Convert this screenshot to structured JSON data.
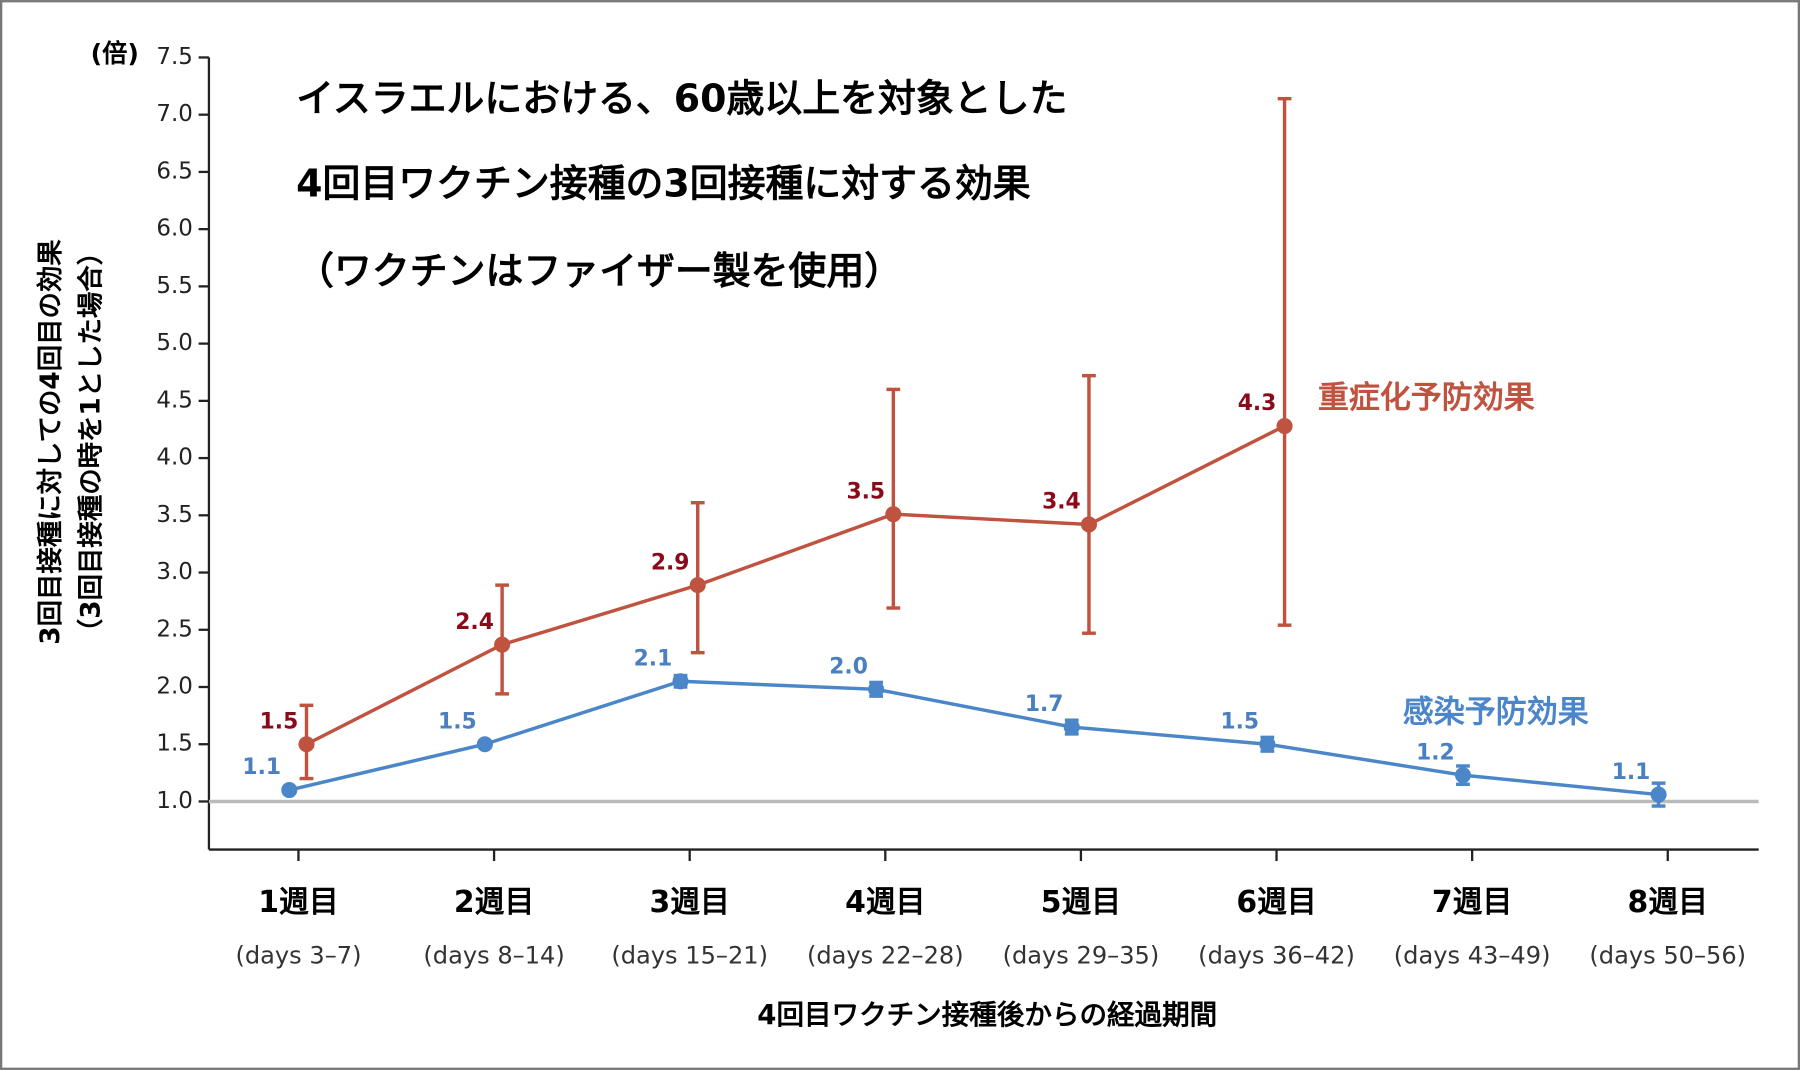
{
  "chart_data": {
    "type": "line",
    "title": [
      "イスラエルにおける、60歳以上を対象とした",
      "4回目ワクチン接種の3回接種に対する効果",
      "（ワクチンはファイザー製を使用）"
    ],
    "y_unit": "(倍)",
    "y_label": "3回目接種に対しての4回目の効果",
    "y_label_sub": "（3回目接種の時を1とした場合）",
    "x_label": "4回目ワクチン接種後からの経過期間",
    "categories": [
      "1週目",
      "2週目",
      "3週目",
      "4週目",
      "5週目",
      "6週目",
      "7週目",
      "8週目"
    ],
    "day_ranges": [
      "(days 3–7)",
      "(days 8–14)",
      "(days 15–21)",
      "(days 22–28)",
      "(days 29–35)",
      "(days 36–42)",
      "(days 43–49)",
      "(days 50–56)"
    ],
    "ylim": [
      0.58,
      7.5
    ],
    "yticks": [
      {
        "value": 1,
        "label": "1.0"
      },
      1.5,
      {
        "value": 2,
        "label": "2.0"
      },
      2.5,
      {
        "value": 3,
        "label": "3.0"
      },
      3.5,
      {
        "value": 4,
        "label": "4.0"
      },
      4.5,
      {
        "value": 5,
        "label": "5.0"
      },
      5.5,
      {
        "value": 6,
        "label": "6.0"
      },
      6.5,
      {
        "value": 7,
        "label": "7.0"
      },
      7.5
    ],
    "reference_line": 1,
    "series": [
      {
        "name": "重症化予防効果",
        "color": "#c0533f",
        "label_color": "#8b0a1a",
        "values": [
          1.5,
          2.37,
          2.89,
          3.51,
          3.42,
          4.28,
          null,
          null
        ],
        "value_labels": [
          "1.5",
          "2.4",
          "2.9",
          "3.5",
          "3.4",
          "4.3",
          null,
          null
        ],
        "lower": [
          1.2,
          1.94,
          2.3,
          2.69,
          2.47,
          2.54,
          null,
          null
        ],
        "upper": [
          1.84,
          2.89,
          3.61,
          4.6,
          4.72,
          7.14,
          null,
          null
        ]
      },
      {
        "name": "感染予防効果",
        "color": "#4a86c8",
        "label_color": "#4a7fc1",
        "values": [
          1.1,
          1.5,
          2.05,
          1.98,
          1.65,
          1.5,
          1.23,
          1.06
        ],
        "value_labels": [
          "1.1",
          "1.5",
          "2.1",
          "2.0",
          "1.7",
          "1.5",
          "1.2",
          "1.1"
        ],
        "lower": [
          1.08,
          1.48,
          2.0,
          1.92,
          1.59,
          1.44,
          1.15,
          0.96
        ],
        "upper": [
          1.12,
          1.52,
          2.1,
          2.04,
          1.71,
          1.56,
          1.31,
          1.16
        ]
      }
    ]
  }
}
